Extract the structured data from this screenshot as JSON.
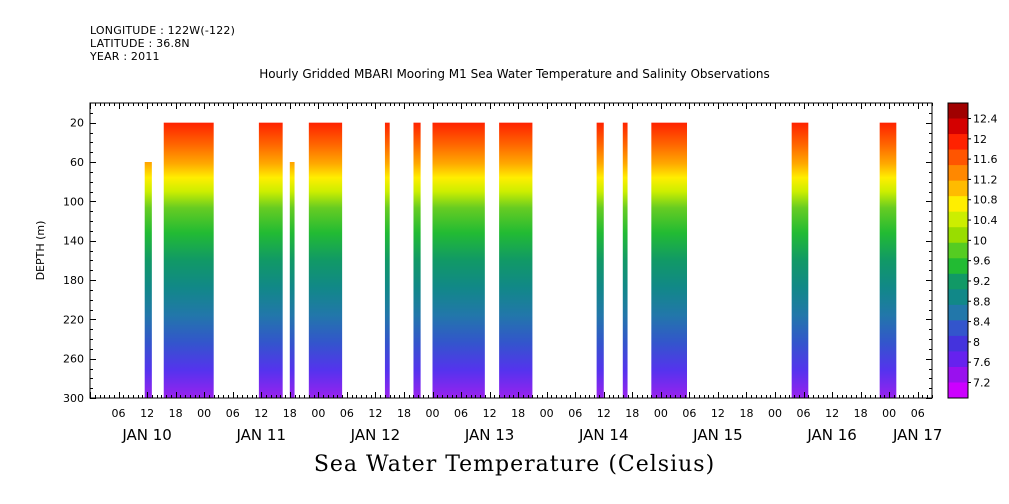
{
  "header": {
    "longitude": "LONGITUDE : 122W(-122)",
    "latitude": "LATITUDE : 36.8N",
    "year": "YEAR : 2011"
  },
  "chart_data": {
    "type": "heatmap",
    "title": "Hourly Gridded MBARI Mooring M1 Sea Water Temperature and Salinity Observations",
    "bottom_title": "Sea Water Temperature (Celsius)",
    "xlabel": "",
    "ylabel": "DEPTH (m)",
    "ylim": [
      300,
      0
    ],
    "xlim_hours": [
      0,
      177
    ],
    "y_ticks": [
      20,
      60,
      100,
      140,
      180,
      220,
      260,
      300
    ],
    "hour_tick_labels": [
      "06",
      "12",
      "18",
      "00",
      "06",
      "12",
      "18",
      "00",
      "06",
      "12",
      "18",
      "00",
      "06",
      "12",
      "18",
      "00",
      "06",
      "12",
      "18",
      "00",
      "06",
      "12",
      "18",
      "00",
      "06",
      "12",
      "18",
      "00",
      "06"
    ],
    "day_labels": [
      {
        "label": "JAN 10",
        "hour": 12
      },
      {
        "label": "JAN 11",
        "hour": 36
      },
      {
        "label": "JAN 12",
        "hour": 60
      },
      {
        "label": "JAN 13",
        "hour": 84
      },
      {
        "label": "JAN 14",
        "hour": 108
      },
      {
        "label": "JAN 15",
        "hour": 132
      },
      {
        "label": "JAN 16",
        "hour": 156
      },
      {
        "label": "JAN 17",
        "hour": 174
      }
    ],
    "colorbar_labels": [
      "12.4",
      "12",
      "11.6",
      "11.2",
      "10.8",
      "10.4",
      "10",
      "9.6",
      "9.2",
      "8.8",
      "8.4",
      "8",
      "7.6",
      "7.2"
    ],
    "colorbar_colors": [
      "#a00000",
      "#d40000",
      "#ff2200",
      "#ff5500",
      "#ff8800",
      "#ffbb00",
      "#ffee00",
      "#ccee00",
      "#99dd00",
      "#55cc22",
      "#22bb33",
      "#119966",
      "#118888",
      "#2277aa",
      "#3355cc",
      "#4433dd",
      "#6622ee",
      "#9911ee",
      "#cc00ff"
    ],
    "color_range": [
      7.2,
      12.4
    ],
    "data_segments": [
      {
        "start": 11.5,
        "end": 13,
        "top_depth": 60
      },
      {
        "start": 15.5,
        "end": 26,
        "top_depth": 20
      },
      {
        "start": 35.5,
        "end": 40.5,
        "top_depth": 20
      },
      {
        "start": 42,
        "end": 43,
        "top_depth": 60
      },
      {
        "start": 46,
        "end": 53,
        "top_depth": 20
      },
      {
        "start": 62,
        "end": 63,
        "top_depth": 20
      },
      {
        "start": 68,
        "end": 69.5,
        "top_depth": 20
      },
      {
        "start": 72,
        "end": 83,
        "top_depth": 20
      },
      {
        "start": 86,
        "end": 93,
        "top_depth": 20
      },
      {
        "start": 106.5,
        "end": 108,
        "top_depth": 20
      },
      {
        "start": 112,
        "end": 113,
        "top_depth": 20
      },
      {
        "start": 118,
        "end": 125.5,
        "top_depth": 20
      },
      {
        "start": 147.5,
        "end": 151,
        "top_depth": 20
      },
      {
        "start": 166,
        "end": 169.5,
        "top_depth": 20
      }
    ]
  }
}
